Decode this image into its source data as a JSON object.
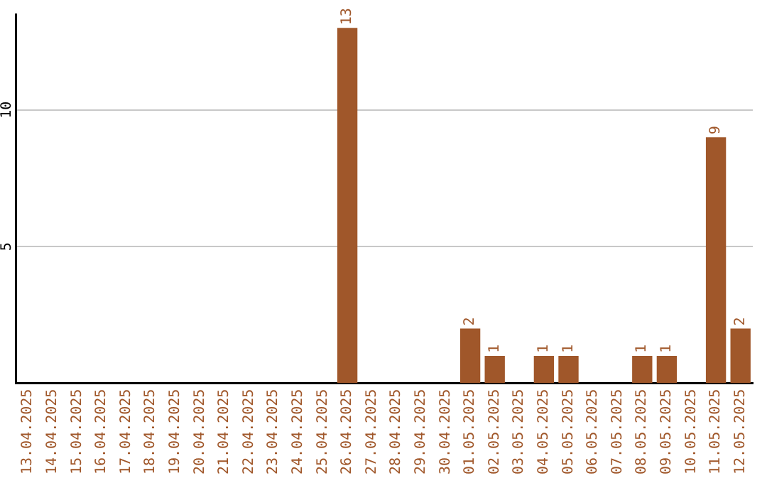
{
  "chart_data": {
    "type": "bar",
    "categories": [
      "13.04.2025",
      "14.04.2025",
      "15.04.2025",
      "16.04.2025",
      "17.04.2025",
      "18.04.2025",
      "19.04.2025",
      "20.04.2025",
      "21.04.2025",
      "22.04.2025",
      "23.04.2025",
      "24.04.2025",
      "25.04.2025",
      "26.04.2025",
      "27.04.2025",
      "28.04.2025",
      "29.04.2025",
      "30.04.2025",
      "01.05.2025",
      "02.05.2025",
      "03.05.2025",
      "04.05.2025",
      "05.05.2025",
      "06.05.2025",
      "07.05.2025",
      "08.05.2025",
      "09.05.2025",
      "10.05.2025",
      "11.05.2025",
      "12.05.2025"
    ],
    "values": [
      0,
      0,
      0,
      0,
      0,
      0,
      0,
      0,
      0,
      0,
      0,
      0,
      0,
      13,
      0,
      0,
      0,
      0,
      2,
      1,
      0,
      1,
      1,
      0,
      0,
      1,
      1,
      0,
      9,
      2
    ],
    "value_labels": [
      null,
      null,
      null,
      null,
      null,
      null,
      null,
      null,
      null,
      null,
      null,
      null,
      null,
      "13",
      null,
      null,
      null,
      null,
      "2",
      "1",
      null,
      "1",
      "1",
      null,
      null,
      "1",
      "1",
      null,
      "9",
      "2"
    ],
    "color": "#a0572a",
    "ylim": [
      0,
      13.5
    ],
    "yticks": [
      5,
      10
    ],
    "grid": "y",
    "legend": false
  }
}
